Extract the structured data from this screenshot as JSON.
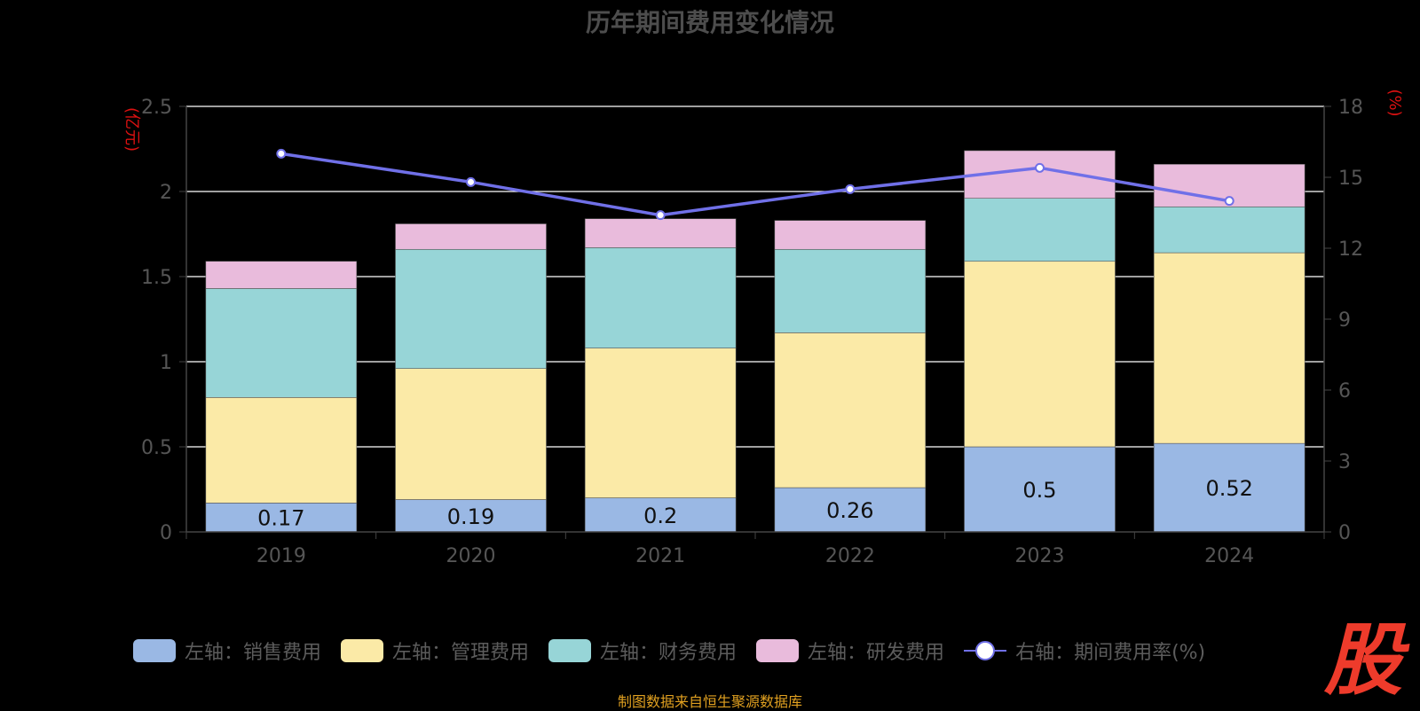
{
  "chart_data": {
    "type": "bar",
    "stacked": true,
    "title": "历年期间费用变化情况",
    "categories": [
      "2019",
      "2020",
      "2021",
      "2022",
      "2023",
      "2024"
    ],
    "ylabel_left": "(亿元)",
    "ylabel_right": "(%)",
    "ylim_left": [
      0,
      2.5
    ],
    "yticks_left": [
      "0",
      "0.5",
      "1",
      "1.5",
      "2",
      "2.5"
    ],
    "ylim_right": [
      0,
      18
    ],
    "yticks_right": [
      "0",
      "3",
      "6",
      "9",
      "12",
      "15",
      "18"
    ],
    "grid": true,
    "legend_position": "bottom",
    "series": [
      {
        "name": "左轴：销售费用",
        "axis": "left",
        "color": "#9ab8e4",
        "values": [
          0.17,
          0.19,
          0.2,
          0.26,
          0.5,
          0.52
        ],
        "labels": [
          "0.17",
          "0.19",
          "0.2",
          "0.26",
          "0.5",
          "0.52"
        ]
      },
      {
        "name": "左轴：管理费用",
        "axis": "left",
        "color": "#fbeaa7",
        "values": [
          0.62,
          0.77,
          0.88,
          0.91,
          1.09,
          1.12
        ]
      },
      {
        "name": "左轴：财务费用",
        "axis": "left",
        "color": "#97d5d7",
        "values": [
          0.64,
          0.7,
          0.59,
          0.49,
          0.37,
          0.27
        ]
      },
      {
        "name": "左轴：研发费用",
        "axis": "left",
        "color": "#e9bbdc",
        "values": [
          0.16,
          0.15,
          0.17,
          0.17,
          0.28,
          0.25
        ]
      },
      {
        "name": "右轴：期间费用率(%)",
        "axis": "right",
        "type": "line",
        "color": "#7070e8",
        "values": [
          16.0,
          14.8,
          13.4,
          14.5,
          15.4,
          14.0
        ]
      }
    ]
  },
  "source_text": "制图数据来自恒生聚源数据库",
  "logo_text": "股"
}
